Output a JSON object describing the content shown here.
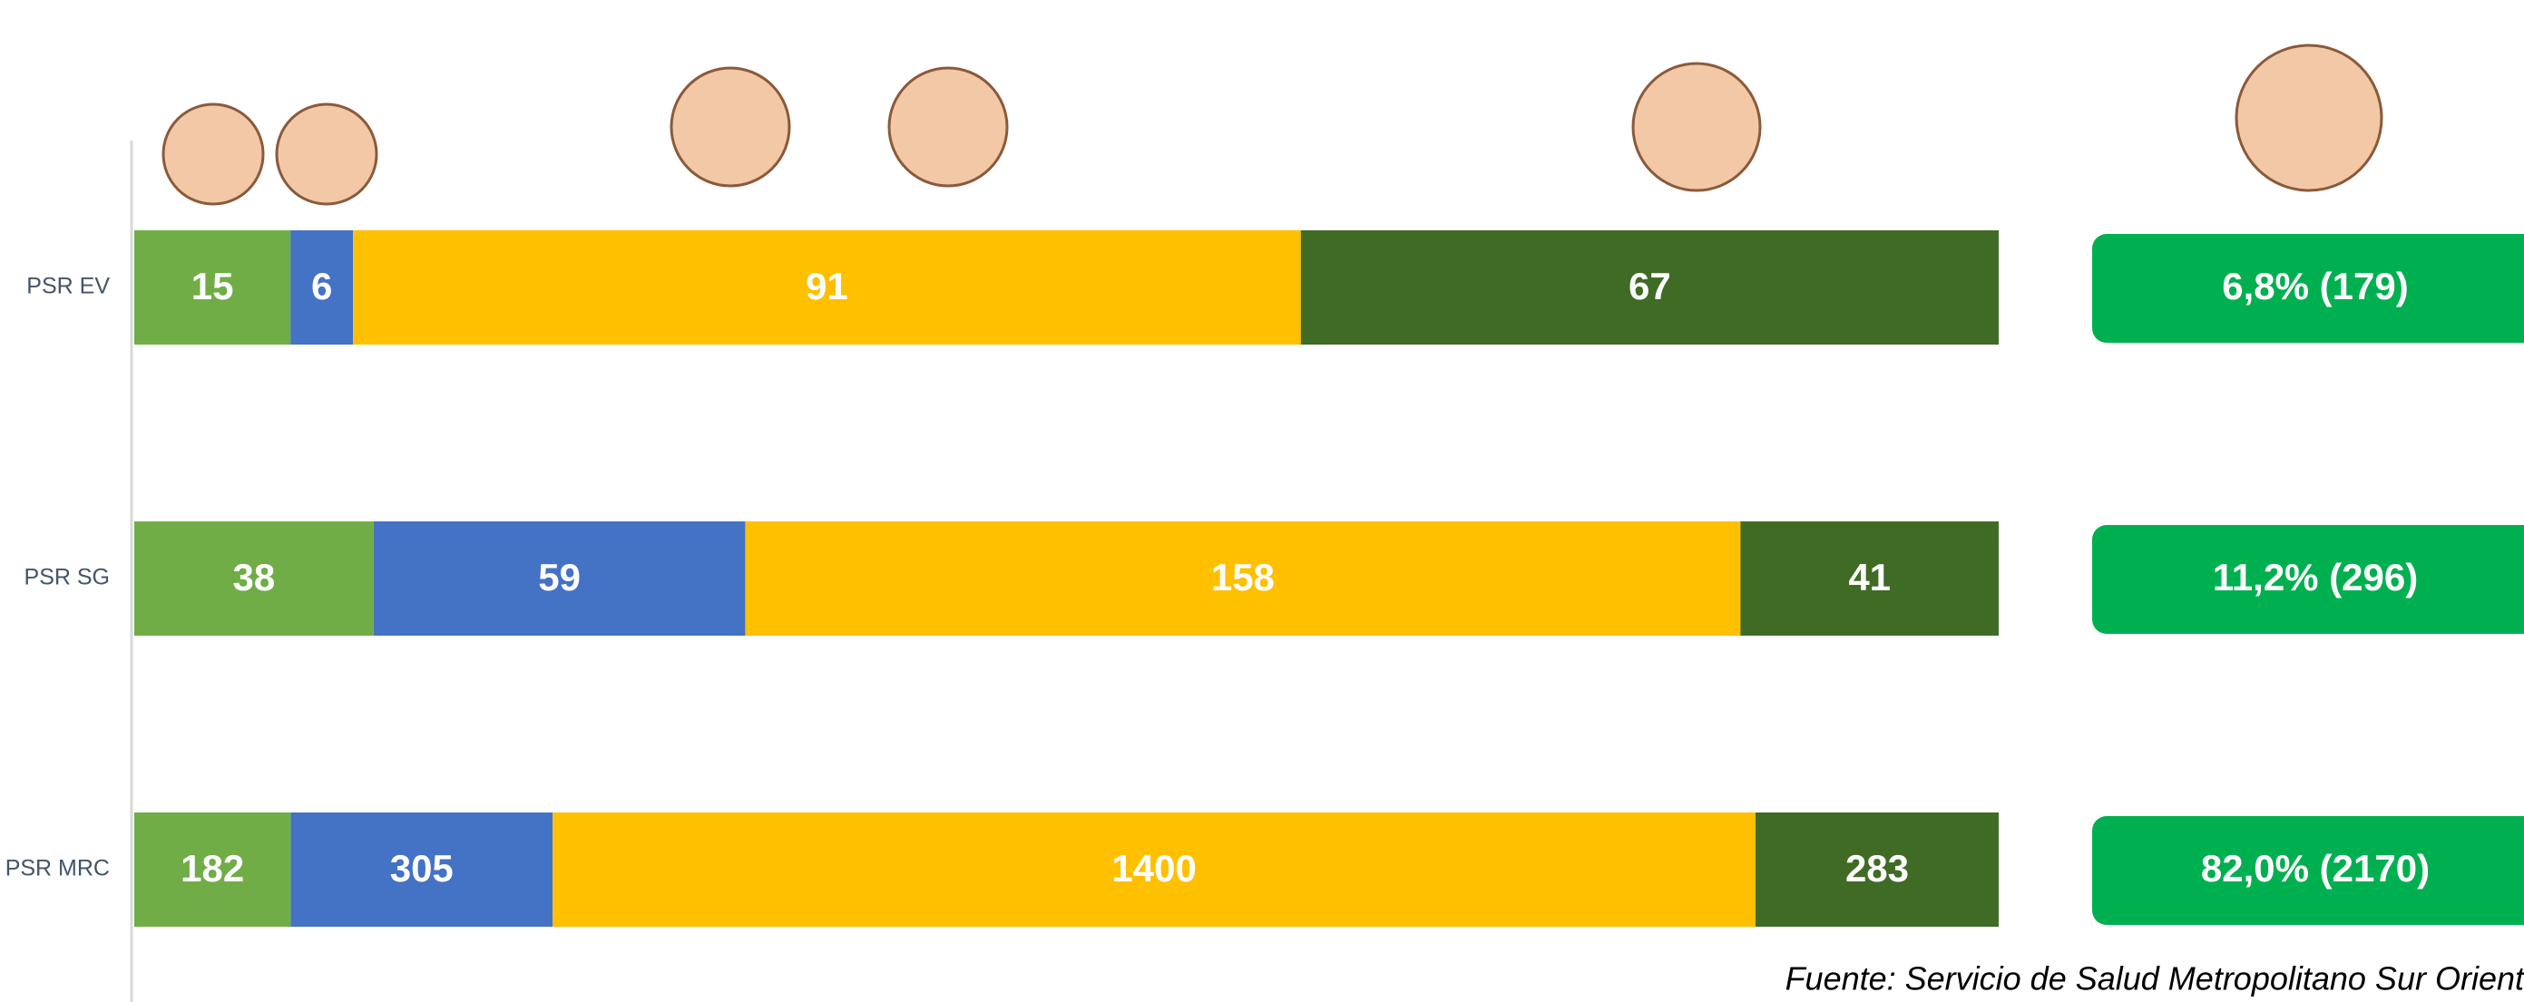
{
  "chart_data": {
    "type": "bar",
    "orientation": "horizontal",
    "stacking": "percent",
    "categories": [
      "PSR EV",
      "PSR SG",
      "PSR MRC"
    ],
    "series": [
      {
        "color": "#70ad47",
        "values": [
          15,
          38,
          182
        ]
      },
      {
        "color": "#4472c4",
        "values": [
          6,
          59,
          305
        ]
      },
      {
        "color": "#ffc000",
        "values": [
          91,
          158,
          1400
        ]
      },
      {
        "color": "#3f6b25",
        "values": [
          67,
          41,
          283
        ]
      }
    ],
    "summary_labels": [
      "6,8% (179)",
      "11,2% (296)",
      "82,0% (2170)"
    ],
    "summary_color": "#00b050",
    "source": "Fuente: Servicio de Salud Metropolitano Sur Orient"
  }
}
